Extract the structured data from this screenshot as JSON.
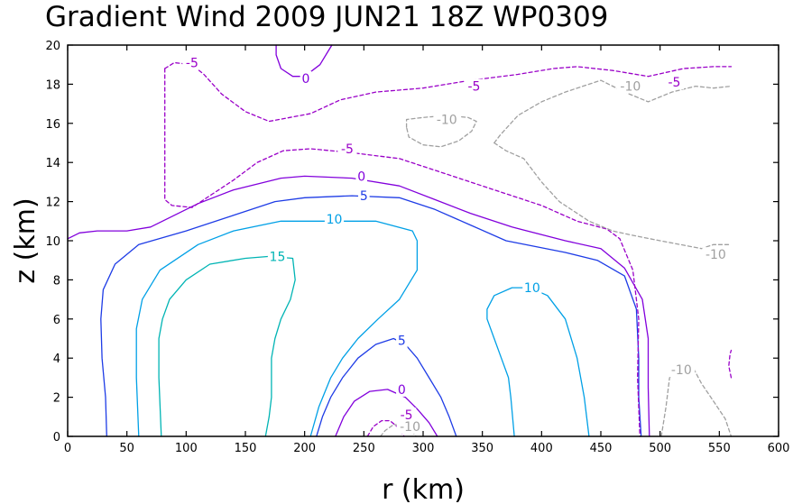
{
  "chart_data": {
    "type": "contour",
    "title": "Gradient Wind 2009 JUN21 18Z  WP0309",
    "xlabel": "r (km)",
    "ylabel": "z (km)",
    "xlim": [
      0,
      600
    ],
    "ylim": [
      0,
      20
    ],
    "x_ticks": [
      "0",
      "50",
      "100",
      "150",
      "200",
      "250",
      "300",
      "350",
      "400",
      "450",
      "500",
      "550",
      "600"
    ],
    "y_ticks": [
      "0",
      "2",
      "4",
      "6",
      "8",
      "10",
      "12",
      "14",
      "16",
      "18",
      "20"
    ],
    "grid": false,
    "levels": [
      {
        "value": -10,
        "color": "#a0a0a0",
        "dashed": true
      },
      {
        "value": -5,
        "color": "#9a00c8",
        "dashed": true
      },
      {
        "value": 0,
        "color": "#8200dc",
        "dashed": false
      },
      {
        "value": 5,
        "color": "#1e3ce6",
        "dashed": false
      },
      {
        "value": 10,
        "color": "#00a0e6",
        "dashed": false
      },
      {
        "value": 15,
        "color": "#00b4b4",
        "dashed": false
      }
    ],
    "contours": [
      {
        "level": 15,
        "points": [
          [
            79,
            0
          ],
          [
            77,
            3
          ],
          [
            77,
            5
          ],
          [
            80,
            6
          ],
          [
            86,
            7
          ],
          [
            100,
            8
          ],
          [
            120,
            8.8
          ],
          [
            150,
            9.1
          ],
          [
            170,
            9.2
          ],
          [
            190,
            9.1
          ],
          [
            192,
            8
          ],
          [
            188,
            7
          ],
          [
            180,
            6
          ],
          [
            175,
            5
          ],
          [
            172,
            4
          ],
          [
            172,
            2
          ],
          [
            170,
            1
          ],
          [
            167,
            0
          ]
        ]
      },
      {
        "level": 10,
        "points": [
          [
            60,
            0
          ],
          [
            58,
            3
          ],
          [
            58,
            5.5
          ],
          [
            63,
            7
          ],
          [
            78,
            8.5
          ],
          [
            110,
            9.8
          ],
          [
            140,
            10.5
          ],
          [
            180,
            11
          ],
          [
            216,
            11
          ],
          [
            260,
            11
          ],
          [
            291,
            10.5
          ],
          [
            295,
            10
          ],
          [
            295,
            8.5
          ],
          [
            280,
            7
          ],
          [
            262,
            6
          ],
          [
            245,
            5
          ],
          [
            232,
            4
          ],
          [
            222,
            3
          ],
          [
            212,
            1.5
          ],
          [
            205,
            0
          ]
        ]
      },
      {
        "level": 10,
        "points": [
          [
            377,
            0
          ],
          [
            374,
            2
          ],
          [
            372,
            3
          ],
          [
            366,
            4
          ],
          [
            360,
            5
          ],
          [
            354,
            6
          ],
          [
            354,
            6.5
          ],
          [
            360,
            7.2
          ],
          [
            375,
            7.6
          ],
          [
            390,
            7.6
          ],
          [
            405,
            7.2
          ],
          [
            420,
            6
          ],
          [
            430,
            4
          ],
          [
            436,
            2
          ],
          [
            440,
            0
          ]
        ]
      },
      {
        "level": 5,
        "points": [
          [
            33,
            0
          ],
          [
            32,
            2
          ],
          [
            29,
            4
          ],
          [
            28,
            6
          ],
          [
            30,
            7.5
          ],
          [
            40,
            8.8
          ],
          [
            60,
            9.8
          ],
          [
            100,
            10.5
          ],
          [
            140,
            11.3
          ],
          [
            175,
            12
          ],
          [
            200,
            12.2
          ],
          [
            240,
            12.3
          ],
          [
            280,
            12.2
          ],
          [
            310,
            11.6
          ],
          [
            340,
            10.8
          ],
          [
            370,
            10
          ],
          [
            420,
            9.4
          ],
          [
            447,
            9
          ],
          [
            470,
            8.2
          ],
          [
            480,
            6.5
          ],
          [
            482,
            4
          ],
          [
            482,
            2
          ],
          [
            484,
            0
          ]
        ]
      },
      {
        "level": 5,
        "points": [
          [
            210,
            0
          ],
          [
            215,
            1
          ],
          [
            222,
            2
          ],
          [
            232,
            3
          ],
          [
            245,
            4
          ],
          [
            260,
            4.7
          ],
          [
            275,
            5
          ],
          [
            285,
            4.7
          ],
          [
            295,
            4
          ],
          [
            305,
            3
          ],
          [
            315,
            2
          ],
          [
            322,
            1
          ],
          [
            328,
            0
          ]
        ]
      },
      {
        "level": 0,
        "points": [
          [
            0,
            10.1
          ],
          [
            10,
            10.4
          ],
          [
            25,
            10.5
          ],
          [
            50,
            10.5
          ],
          [
            70,
            10.7
          ],
          [
            90,
            11.3
          ],
          [
            110,
            11.9
          ],
          [
            140,
            12.6
          ],
          [
            180,
            13.2
          ],
          [
            200,
            13.3
          ],
          [
            240,
            13.2
          ],
          [
            280,
            12.8
          ],
          [
            310,
            12.1
          ],
          [
            340,
            11.4
          ],
          [
            375,
            10.7
          ],
          [
            420,
            10
          ],
          [
            450,
            9.6
          ],
          [
            470,
            8.6
          ],
          [
            485,
            7
          ],
          [
            490,
            5
          ],
          [
            490,
            2.5
          ],
          [
            491,
            0
          ]
        ]
      },
      {
        "level": 0,
        "points": [
          [
            226,
            0
          ],
          [
            233,
            1
          ],
          [
            242,
            1.8
          ],
          [
            255,
            2.3
          ],
          [
            270,
            2.4
          ],
          [
            285,
            2
          ],
          [
            295,
            1.4
          ],
          [
            305,
            0.7
          ],
          [
            312,
            0
          ]
        ]
      },
      {
        "level": 0,
        "points": [
          [
            176,
            20
          ],
          [
            176,
            19.5
          ],
          [
            180,
            18.8
          ],
          [
            190,
            18.4
          ],
          [
            200,
            18.4
          ],
          [
            213,
            19
          ],
          [
            220,
            19.7
          ],
          [
            223,
            20
          ]
        ]
      },
      {
        "level": -5,
        "points": [
          [
            82,
            18.8
          ],
          [
            82,
            16
          ],
          [
            82,
            13
          ],
          [
            82,
            12.1
          ],
          [
            88,
            11.8
          ],
          [
            105,
            11.7
          ],
          [
            120,
            12.3
          ],
          [
            140,
            13.1
          ],
          [
            160,
            14
          ],
          [
            182,
            14.6
          ],
          [
            205,
            14.7
          ],
          [
            240,
            14.5
          ],
          [
            280,
            14.2
          ],
          [
            320,
            13.4
          ],
          [
            360,
            12.6
          ],
          [
            400,
            11.8
          ],
          [
            430,
            11
          ],
          [
            455,
            10.6
          ],
          [
            466,
            10.1
          ],
          [
            477,
            8.5
          ],
          [
            482,
            6
          ],
          [
            481,
            3
          ],
          [
            483,
            0
          ]
        ]
      },
      {
        "level": -5,
        "points": [
          [
            82,
            18.8
          ],
          [
            90,
            19.1
          ],
          [
            105,
            19
          ],
          [
            115,
            18.5
          ],
          [
            130,
            17.5
          ],
          [
            150,
            16.6
          ],
          [
            170,
            16.1
          ],
          [
            205,
            16.5
          ],
          [
            230,
            17.2
          ],
          [
            260,
            17.6
          ],
          [
            300,
            17.8
          ],
          [
            340,
            18.2
          ],
          [
            380,
            18.5
          ],
          [
            410,
            18.8
          ],
          [
            430,
            18.9
          ],
          [
            460,
            18.7
          ],
          [
            490,
            18.4
          ],
          [
            520,
            18.8
          ],
          [
            545,
            18.9
          ],
          [
            560,
            18.9
          ]
        ]
      },
      {
        "level": -5,
        "points": [
          [
            253,
            0
          ],
          [
            258,
            0.5
          ],
          [
            265,
            0.8
          ],
          [
            272,
            0.8
          ],
          [
            278,
            0.5
          ],
          [
            284,
            0
          ]
        ]
      },
      {
        "level": -5,
        "points": [
          [
            560,
            3
          ],
          [
            558,
            3.6
          ],
          [
            559,
            4.2
          ],
          [
            560,
            4.4
          ]
        ]
      },
      {
        "level": -10,
        "points": [
          [
            360,
            15
          ],
          [
            365,
            15.4
          ],
          [
            380,
            16.4
          ],
          [
            400,
            17.1
          ],
          [
            420,
            17.6
          ],
          [
            440,
            18
          ],
          [
            450,
            18.2
          ],
          [
            470,
            17.6
          ],
          [
            490,
            17.1
          ],
          [
            510,
            17.6
          ],
          [
            530,
            17.9
          ],
          [
            545,
            17.8
          ],
          [
            560,
            17.9
          ]
        ]
      },
      {
        "level": -10,
        "points": [
          [
            360,
            15
          ],
          [
            370,
            14.6
          ],
          [
            385,
            14.2
          ],
          [
            400,
            13
          ],
          [
            415,
            12
          ],
          [
            440,
            11
          ],
          [
            460,
            10.5
          ],
          [
            475,
            10.3
          ],
          [
            500,
            10
          ],
          [
            535,
            9.6
          ],
          [
            545,
            9.8
          ],
          [
            560,
            9.8
          ]
        ]
      },
      {
        "level": -10,
        "points": [
          [
            286,
            15.8
          ],
          [
            286,
            16.2
          ],
          [
            300,
            16.3
          ],
          [
            320,
            16.4
          ],
          [
            338,
            16.3
          ],
          [
            345,
            16.1
          ],
          [
            341,
            15.6
          ],
          [
            330,
            15.1
          ],
          [
            315,
            14.8
          ],
          [
            300,
            14.9
          ],
          [
            288,
            15.3
          ],
          [
            286,
            15.8
          ]
        ]
      },
      {
        "level": -10,
        "points": [
          [
            264,
            0
          ],
          [
            268,
            0.3
          ],
          [
            275,
            0.6
          ],
          [
            282,
            0.6
          ],
          [
            290,
            0.3
          ],
          [
            294,
            0
          ]
        ]
      },
      {
        "level": -10,
        "points": [
          [
            501,
            0
          ],
          [
            505,
            1.5
          ],
          [
            508,
            3
          ],
          [
            515,
            3.5
          ],
          [
            528,
            3.5
          ],
          [
            535,
            2.7
          ],
          [
            545,
            1.8
          ],
          [
            555,
            0.9
          ],
          [
            560,
            0
          ]
        ]
      }
    ],
    "contour_labels": [
      {
        "text": "15",
        "level": 15,
        "x": 177,
        "y": 9.2
      },
      {
        "text": "10",
        "level": 10,
        "x": 225,
        "y": 11.1
      },
      {
        "text": "10",
        "level": 10,
        "x": 392,
        "y": 7.6
      },
      {
        "text": "5",
        "level": 5,
        "x": 250,
        "y": 12.3
      },
      {
        "text": "5",
        "level": 5,
        "x": 282,
        "y": 4.9
      },
      {
        "text": "0",
        "level": 0,
        "x": 248,
        "y": 13.3
      },
      {
        "text": "0",
        "level": 0,
        "x": 282,
        "y": 2.4
      },
      {
        "text": "0",
        "level": 0,
        "x": 201,
        "y": 18.3
      },
      {
        "text": "-5",
        "level": -5,
        "x": 236,
        "y": 14.7
      },
      {
        "text": "-5",
        "level": -5,
        "x": 105,
        "y": 19.1
      },
      {
        "text": "-5",
        "level": -5,
        "x": 343,
        "y": 17.9
      },
      {
        "text": "-5",
        "level": -5,
        "x": 512,
        "y": 18.1
      },
      {
        "text": "-5",
        "level": -5,
        "x": 286,
        "y": 1.1
      },
      {
        "text": "-10",
        "level": -10,
        "x": 475,
        "y": 17.9
      },
      {
        "text": "-10",
        "level": -10,
        "x": 320,
        "y": 16.2
      },
      {
        "text": "-10",
        "level": -10,
        "x": 547,
        "y": 9.3
      },
      {
        "text": "-10",
        "level": -10,
        "x": 518,
        "y": 3.4
      },
      {
        "text": "-10",
        "level": -10,
        "x": 289,
        "y": 0.5
      }
    ]
  }
}
